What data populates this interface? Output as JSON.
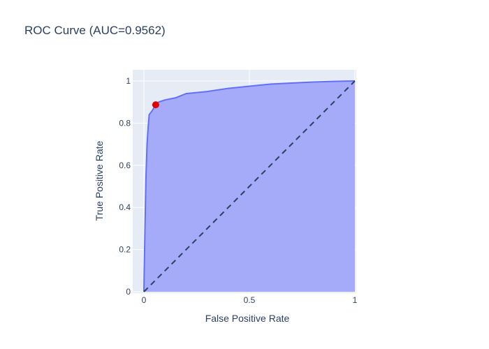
{
  "chart_data": {
    "type": "area",
    "title": "ROC Curve (AUC=0.9562)",
    "xlabel": "False Positive Rate",
    "ylabel": "True Positive Rate",
    "xlim": [
      0,
      1
    ],
    "ylim": [
      0,
      1
    ],
    "x_ticks": [
      0,
      0.5,
      1
    ],
    "x_tick_labels": [
      "0",
      "0.5",
      "1"
    ],
    "y_ticks": [
      0,
      0.2,
      0.4,
      0.6,
      0.8,
      1
    ],
    "y_tick_labels": [
      "0",
      "0.2",
      "0.4",
      "0.6",
      "0.8",
      "1"
    ],
    "grid": true,
    "legend": "none",
    "series": [
      {
        "type": "area",
        "x": [
          0,
          0.005,
          0.01,
          0.015,
          0.02,
          0.025,
          0.04,
          0.056,
          0.07,
          0.1,
          0.15,
          0.2,
          0.3,
          0.4,
          0.5,
          0.6,
          0.7,
          0.8,
          0.9,
          0.95,
          1.0
        ],
        "y": [
          0,
          0.3,
          0.55,
          0.7,
          0.78,
          0.84,
          0.86,
          0.887,
          0.9,
          0.91,
          0.92,
          0.94,
          0.95,
          0.965,
          0.975,
          0.985,
          0.99,
          0.995,
          0.998,
          0.999,
          1.0
        ],
        "color": "#636efa",
        "fill": "#a5abf8"
      },
      {
        "type": "line",
        "dash": "dash",
        "x": [
          0,
          1
        ],
        "y": [
          0,
          1
        ],
        "color": "#2a3f5f"
      },
      {
        "type": "scatter",
        "x": [
          0.056
        ],
        "y": [
          0.887
        ],
        "color": "#e00000"
      }
    ],
    "colors": {
      "plot_background": "#e5ecf6",
      "grid": "#ffffff",
      "text": "#2a3f5f"
    }
  }
}
